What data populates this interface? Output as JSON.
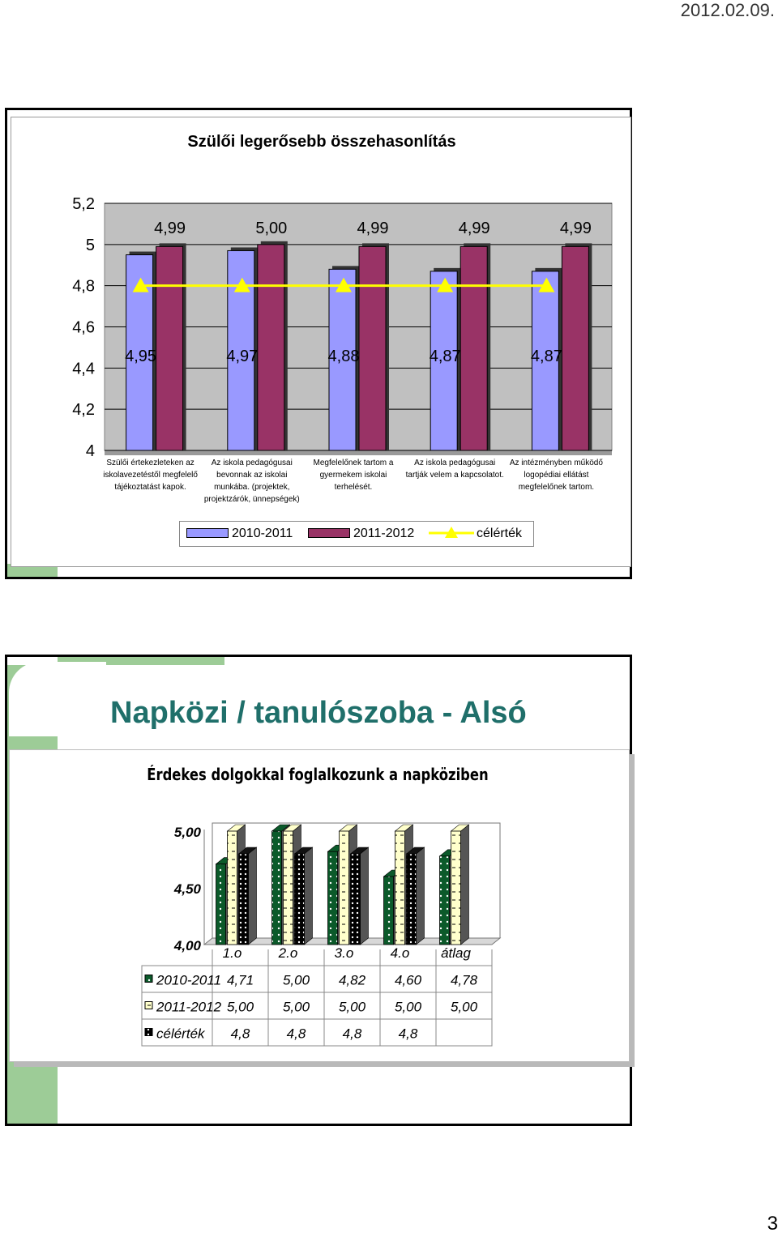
{
  "header": {
    "date": "2012.02.09."
  },
  "footer": {
    "page_number": "3"
  },
  "slide1": {
    "chart_data": {
      "type": "bar",
      "title": "Szülői legerősebb összehasonlítás",
      "categories": [
        [
          "Szülői értekezleteken az",
          "iskolavezetéstől megfelelő",
          "tájékoztatást kapok."
        ],
        [
          "Az iskola pedagógusai",
          "bevonnak az iskolai",
          "munkába. (projektek,",
          "projektzárók, ünnepségek)"
        ],
        [
          "Megfelelőnek tartom a",
          "gyermekem iskolai",
          "terhelését."
        ],
        [
          "Az iskola pedagógusai",
          "tartják velem a kapcsolatot."
        ],
        [
          "Az intézményben működő",
          "logopédiai ellátást",
          "megfelelőnek tartom."
        ]
      ],
      "y_ticks": [
        "4",
        "4,2",
        "4,4",
        "4,6",
        "4,8",
        "5",
        "5,2"
      ],
      "ylim": [
        4,
        5.2
      ],
      "series": [
        {
          "name": "2010-2011",
          "values": [
            4.95,
            4.97,
            4.88,
            4.87,
            4.87
          ],
          "labels": [
            "4,95",
            "4,97",
            "4,88",
            "4,87",
            "4,87"
          ],
          "color": "#9999ff"
        },
        {
          "name": "2011-2012",
          "values": [
            4.99,
            5.0,
            4.99,
            4.99,
            4.99
          ],
          "labels": [
            "4,99",
            "5,00",
            "4,99",
            "4,99",
            "4,99"
          ],
          "color": "#993366"
        },
        {
          "name": "célérték",
          "type": "line",
          "values": [
            4.8,
            4.8,
            4.8,
            4.8,
            4.8
          ],
          "color": "#ffff00"
        }
      ],
      "grid": true,
      "legend": "bottom"
    }
  },
  "slide2": {
    "heading": "Napközi / tanulószoba - Alsó",
    "chart_data": {
      "type": "bar",
      "title": "Érdekes dolgokkal foglalkozunk a napköziben",
      "categories": [
        "1.o",
        "2.o",
        "3.o",
        "4.o",
        "átlag"
      ],
      "y_ticks": [
        "4,00",
        "4,50",
        "5,00"
      ],
      "ylim": [
        4,
        5
      ],
      "series": [
        {
          "name": "2010-2011",
          "values": [
            4.71,
            5.0,
            4.82,
            4.6,
            4.78
          ],
          "labels": [
            "4,71",
            "5,00",
            "4,82",
            "4,60",
            "4,78"
          ],
          "color": "#0b5a2a"
        },
        {
          "name": "2011-2012",
          "values": [
            5.0,
            5.0,
            5.0,
            5.0,
            5.0
          ],
          "labels": [
            "5,00",
            "5,00",
            "5,00",
            "5,00",
            "5,00"
          ],
          "color": "#ffffcc"
        },
        {
          "name": "célérték",
          "values": [
            4.8,
            4.8,
            4.8,
            4.8,
            null
          ],
          "labels": [
            "4,8",
            "4,8",
            "4,8",
            "4,8",
            ""
          ],
          "color": "#111111"
        }
      ],
      "data_table": true
    }
  }
}
